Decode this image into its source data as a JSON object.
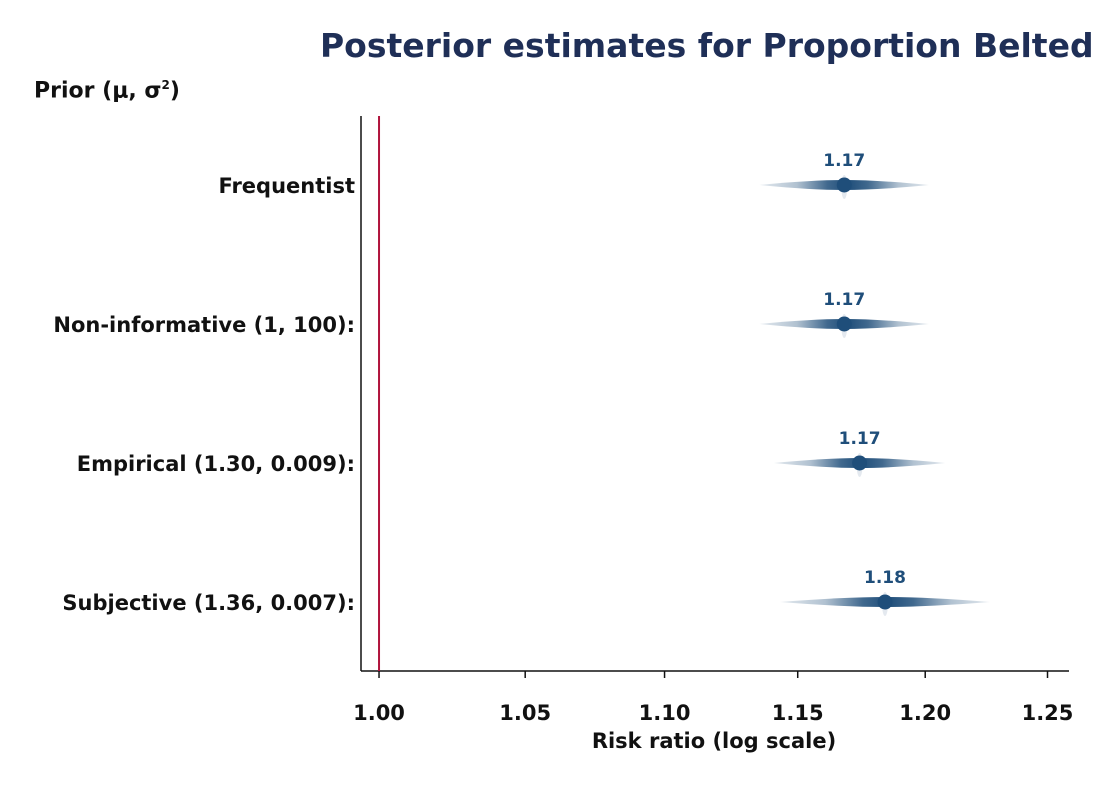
{
  "chart_data": {
    "type": "forest",
    "title": "Posterior estimates for Proportion Belted",
    "prior_header": {
      "text": "Prior (μ, σ",
      "sup": "2",
      "close": ")"
    },
    "xlabel": "Risk ratio (log scale)",
    "xscale": "log",
    "xlim": [
      0.994,
      1.259
    ],
    "xticks": [
      1.0,
      1.05,
      1.1,
      1.15,
      1.2,
      1.25
    ],
    "xtick_labels": [
      "1.00",
      "1.05",
      "1.10",
      "1.15",
      "1.20",
      "1.25"
    ],
    "reference_line": 1.0,
    "rows": [
      {
        "label": "Frequentist",
        "estimate": 1.168,
        "value_label": "1.17",
        "ci_low": 1.112,
        "ci_high": 1.222
      },
      {
        "label": "Non-informative (1, 100):",
        "estimate": 1.168,
        "value_label": "1.17",
        "ci_low": 1.112,
        "ci_high": 1.222
      },
      {
        "label": "Empirical (1.30, 0.009):",
        "estimate": 1.174,
        "value_label": "1.17",
        "ci_low": 1.118,
        "ci_high": 1.23
      },
      {
        "label": "Subjective (1.36, 0.007):",
        "estimate": 1.184,
        "value_label": "1.18",
        "ci_low": 1.115,
        "ci_high": 1.253
      }
    ],
    "colors": {
      "point": "#1f4e7a",
      "interval": "#1f4e7a",
      "reference": "#b0133c",
      "title": "#1f2f57"
    },
    "grid": false
  }
}
